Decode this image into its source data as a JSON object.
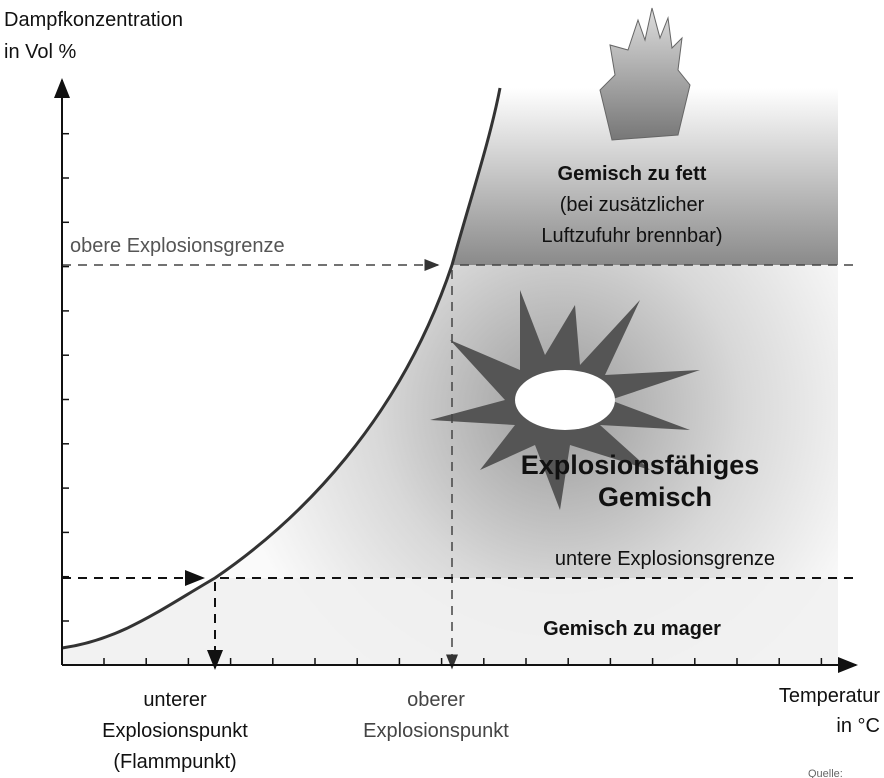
{
  "y_axis_label": [
    "Dampfkonzentration",
    "in Vol %"
  ],
  "x_axis_label": [
    "Temperatur",
    "in °C"
  ],
  "upper_limit_label": "obere Explosionsgrenze",
  "lower_limit_label": "untere Explosionsgrenze",
  "rich_region": [
    "Gemisch zu fett",
    "(bei zusätzlicher",
    "Luftzufuhr brennbar)"
  ],
  "explosive_region": [
    "Explosionsfähiges",
    "Gemisch"
  ],
  "lean_region": "Gemisch zu mager",
  "lower_point_label": [
    "unterer",
    "Explosionspunkt",
    "(Flammpunkt)"
  ],
  "upper_point_label": [
    "oberer",
    "Explosionspunkt"
  ],
  "source": "Quelle:"
}
